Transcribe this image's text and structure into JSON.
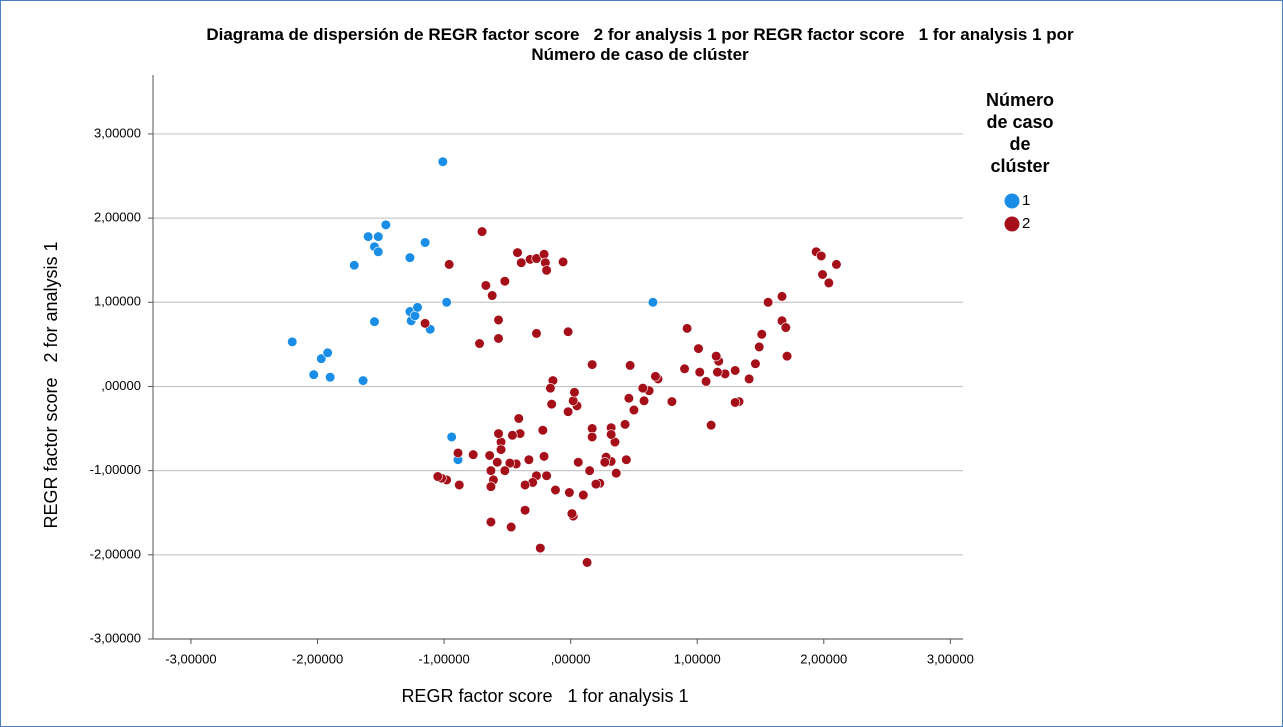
{
  "chart_data": {
    "type": "scatter",
    "title": [
      "Diagrama de dispersión de REGR factor score   2 for analysis 1 por REGR factor score   1 for analysis 1 por",
      "Número de caso de clúster"
    ],
    "x_label": "REGR factor score   1 for analysis 1",
    "y_label": "REGR factor score   2 for analysis 1",
    "legend_title": [
      "Número",
      "de caso",
      "de",
      "clúster"
    ],
    "legend_position": "right",
    "grid": true,
    "xlim": [
      -3.3,
      3.1
    ],
    "ylim": [
      -3.0,
      3.7
    ],
    "xticks": [
      {
        "value": -3,
        "label": "-3,00000"
      },
      {
        "value": -2,
        "label": "-2,00000"
      },
      {
        "value": -1,
        "label": "-1,00000"
      },
      {
        "value": 0,
        "label": ",00000"
      },
      {
        "value": 1,
        "label": "1,00000"
      },
      {
        "value": 2,
        "label": "2,00000"
      },
      {
        "value": 3,
        "label": "3,00000"
      }
    ],
    "yticks": [
      {
        "value": -3,
        "label": "-3,00000"
      },
      {
        "value": -2,
        "label": "-2,00000"
      },
      {
        "value": -1,
        "label": "-1,00000"
      },
      {
        "value": 0,
        "label": ",00000"
      },
      {
        "value": 1,
        "label": "1,00000"
      },
      {
        "value": 2,
        "label": "2,00000"
      },
      {
        "value": 3,
        "label": "3,00000"
      }
    ],
    "series": [
      {
        "name": "1",
        "color": "#1a8ee6",
        "x": [
          -2.2,
          -2.03,
          -1.97,
          -1.92,
          -1.9,
          -1.64,
          -1.71,
          -1.6,
          -1.52,
          -1.55,
          -1.52,
          -1.46,
          -1.55,
          -1.27,
          -1.27,
          -1.26,
          -1.23,
          -1.21,
          -1.15,
          -1.11,
          -0.98,
          -1.01,
          -0.94,
          -0.89,
          0.65
        ],
        "values": [
          0.53,
          0.14,
          0.33,
          0.4,
          0.11,
          0.07,
          1.44,
          1.78,
          1.78,
          1.66,
          1.6,
          1.92,
          0.77,
          1.53,
          0.89,
          0.78,
          0.84,
          0.94,
          1.71,
          0.68,
          1.0,
          2.67,
          -0.6,
          -0.87,
          1.0
        ]
      },
      {
        "name": "2",
        "color": "#a50f19",
        "x": [
          -0.7,
          -0.96,
          -0.67,
          -0.62,
          -0.52,
          -0.42,
          -0.39,
          -0.32,
          -0.27,
          -0.21,
          -0.2,
          -0.19,
          -0.06,
          -0.27,
          -0.02,
          -0.57,
          -0.57,
          -0.72,
          -1.15,
          1.94,
          1.98,
          1.99,
          2.04,
          2.1,
          1.71,
          1.67,
          1.56,
          1.67,
          1.7,
          1.51,
          1.49,
          1.46,
          1.41,
          1.33,
          1.3,
          1.3,
          1.22,
          1.17,
          1.15,
          1.16,
          1.11,
          1.07,
          1.01,
          1.02,
          0.92,
          0.9,
          0.8,
          0.69,
          0.67,
          0.62,
          0.58,
          0.57,
          0.5,
          0.47,
          0.46,
          0.43,
          0.44,
          0.36,
          0.35,
          0.32,
          0.32,
          0.32,
          0.28,
          0.27,
          0.23,
          0.2,
          0.17,
          0.17,
          0.15,
          0.17,
          0.13,
          0.1,
          0.06,
          0.02,
          0.01,
          -0.01,
          -0.02,
          0.05,
          0.02,
          0.03,
          -0.12,
          -0.14,
          -0.16,
          -0.15,
          -0.19,
          -0.21,
          -0.22,
          -0.24,
          -0.27,
          -0.3,
          -0.33,
          -0.36,
          -0.36,
          -0.4,
          -0.41,
          -0.43,
          -0.46,
          -0.47,
          -0.48,
          -0.52,
          -0.55,
          -0.55,
          -0.57,
          -0.58,
          -0.61,
          -0.63,
          -0.63,
          -0.63,
          -0.64,
          -0.77,
          -0.88,
          -0.89,
          -0.98,
          -1.02,
          -1.05
        ],
        "values": [
          1.84,
          1.45,
          1.2,
          1.08,
          1.25,
          1.59,
          1.47,
          1.51,
          1.52,
          1.57,
          1.47,
          1.38,
          1.48,
          0.63,
          0.65,
          0.79,
          0.57,
          0.51,
          0.75,
          1.6,
          1.55,
          1.33,
          1.23,
          1.45,
          0.36,
          1.07,
          1.0,
          0.78,
          0.7,
          0.62,
          0.47,
          0.27,
          0.09,
          -0.18,
          -0.19,
          0.19,
          0.15,
          0.3,
          0.36,
          0.17,
          -0.46,
          0.06,
          0.45,
          0.17,
          0.69,
          0.21,
          -0.18,
          0.09,
          0.12,
          -0.05,
          -0.17,
          -0.02,
          -0.28,
          0.25,
          -0.14,
          -0.45,
          -0.87,
          -1.03,
          -0.66,
          -0.49,
          -0.57,
          -0.89,
          -0.84,
          -0.9,
          -1.15,
          -1.16,
          -0.5,
          -0.6,
          -1.0,
          0.26,
          -2.09,
          -1.29,
          -0.9,
          -1.54,
          -1.51,
          -1.26,
          -0.3,
          -0.23,
          -0.17,
          -0.07,
          -1.23,
          0.07,
          -0.02,
          -0.21,
          -1.06,
          -0.83,
          -0.52,
          -1.92,
          -1.06,
          -1.14,
          -0.87,
          -1.17,
          -1.47,
          -0.56,
          -0.38,
          -0.92,
          -0.58,
          -1.67,
          -0.91,
          -1.0,
          -0.66,
          -0.75,
          -0.56,
          -0.9,
          -1.11,
          -1.0,
          -1.19,
          -1.61,
          -0.82,
          -0.81,
          -1.17,
          -0.79,
          -1.11,
          -1.09,
          -1.07
        ]
      }
    ]
  }
}
